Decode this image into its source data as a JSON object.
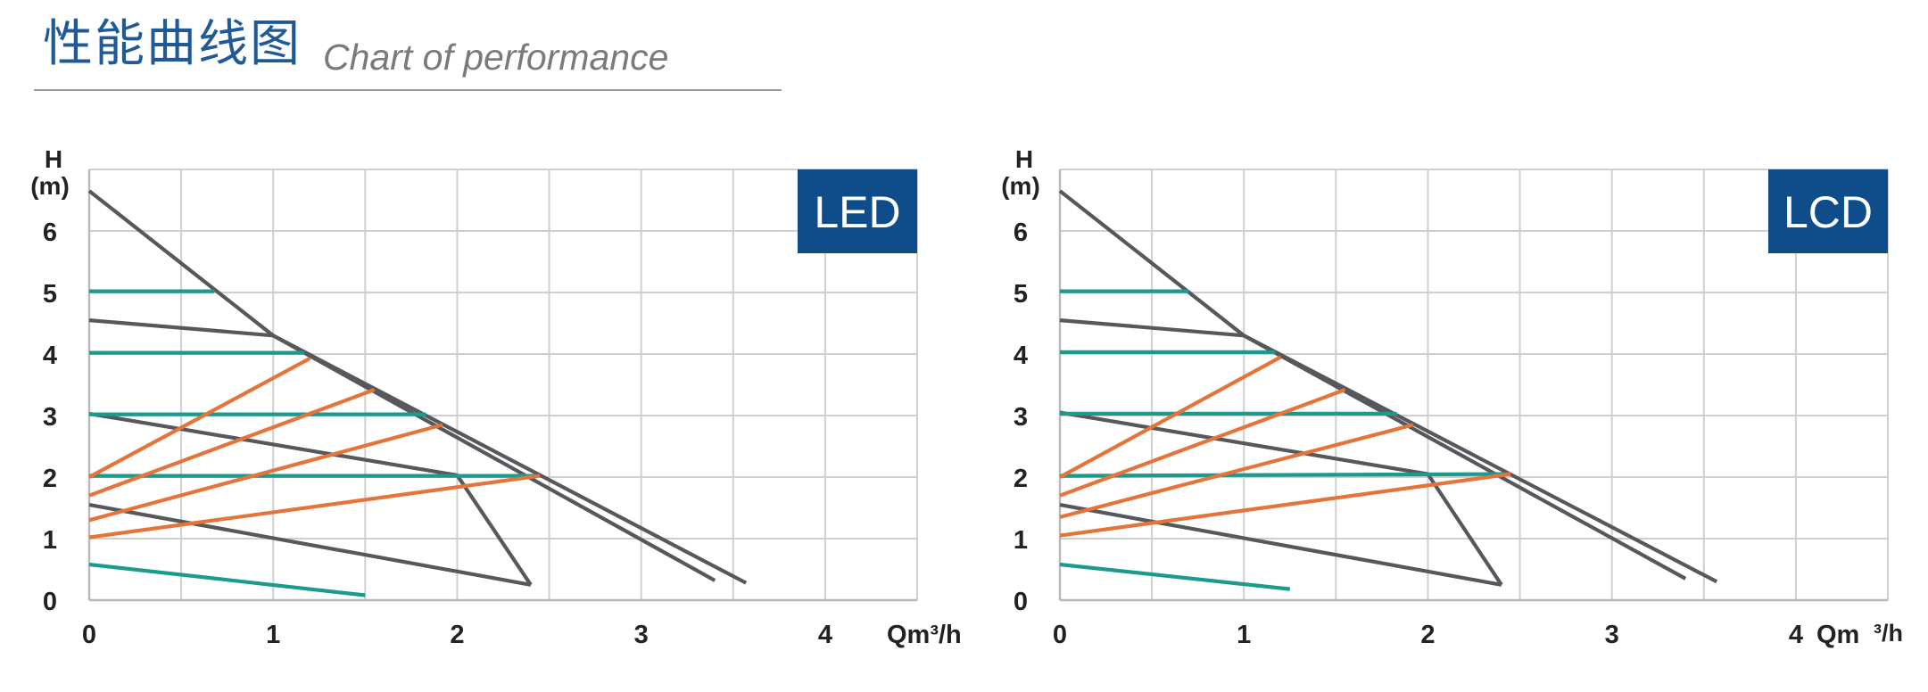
{
  "header": {
    "title_cn": "性能曲线图",
    "title_en": "Chart of performance"
  },
  "colors": {
    "title": "#1f5a96",
    "badge": "#0f4d8a",
    "grid": "#cfcfcf",
    "gray_curve": "#56585c",
    "teal": "#1b9b8e",
    "orange": "#e4743a"
  },
  "chart_data": [
    {
      "type": "line",
      "badge": "LED",
      "xlabel": "Qm³/h",
      "ylabel_top": "H",
      "ylabel_bottom": "(m)",
      "x_ticks": [
        "0",
        "1",
        "2",
        "3",
        "4"
      ],
      "y_ticks": [
        "0",
        "1",
        "2",
        "3",
        "4",
        "5",
        "6"
      ],
      "xlim": [
        0,
        4.5
      ],
      "ylim": [
        0,
        7
      ],
      "grid": true,
      "series": [
        {
          "color": "gray",
          "points": [
            [
              0,
              6.65
            ],
            [
              1.0,
              4.3
            ],
            [
              3.57,
              0.28
            ]
          ]
        },
        {
          "color": "gray",
          "points": [
            [
              0,
              4.55
            ],
            [
              1.0,
              4.3
            ],
            [
              3.4,
              0.32
            ]
          ]
        },
        {
          "color": "gray",
          "points": [
            [
              0,
              3.03
            ],
            [
              2.0,
              2.03
            ],
            [
              2.4,
              0.25
            ]
          ]
        },
        {
          "color": "gray",
          "points": [
            [
              0,
              1.55
            ],
            [
              2.4,
              0.25
            ]
          ]
        },
        {
          "color": "teal",
          "points": [
            [
              0,
              5.02
            ],
            [
              0.68,
              5.02
            ]
          ]
        },
        {
          "color": "teal",
          "points": [
            [
              0,
              4.02
            ],
            [
              1.17,
              4.02
            ]
          ]
        },
        {
          "color": "teal",
          "points": [
            [
              0,
              3.02
            ],
            [
              1.83,
              3.02
            ]
          ]
        },
        {
          "color": "teal",
          "points": [
            [
              0,
              2.02
            ],
            [
              2.43,
              2.02
            ]
          ]
        },
        {
          "color": "teal",
          "points": [
            [
              0,
              0.58
            ],
            [
              1.5,
              0.08
            ]
          ]
        },
        {
          "color": "orange",
          "points": [
            [
              0,
              2.0
            ],
            [
              1.2,
              3.93
            ]
          ]
        },
        {
          "color": "orange",
          "points": [
            [
              0,
              1.7
            ],
            [
              1.55,
              3.42
            ]
          ]
        },
        {
          "color": "orange",
          "points": [
            [
              0,
              1.3
            ],
            [
              1.92,
              2.85
            ]
          ]
        },
        {
          "color": "orange",
          "points": [
            [
              0,
              1.02
            ],
            [
              2.45,
              2.02
            ]
          ]
        }
      ]
    },
    {
      "type": "line",
      "badge": "LCD",
      "xlabel_q": "Qm",
      "xlabel_unit": "³/h",
      "ylabel_top": "H",
      "ylabel_bottom": "(m)",
      "x_ticks": [
        "0",
        "1",
        "2",
        "3",
        "4"
      ],
      "y_ticks": [
        "0",
        "1",
        "2",
        "3",
        "4",
        "5",
        "6"
      ],
      "xlim": [
        0,
        4.5
      ],
      "ylim": [
        0,
        7
      ],
      "grid": true,
      "series": [
        {
          "color": "gray",
          "points": [
            [
              0,
              6.65
            ],
            [
              1.0,
              4.3
            ],
            [
              3.57,
              0.3
            ]
          ]
        },
        {
          "color": "gray",
          "points": [
            [
              0,
              4.55
            ],
            [
              1.0,
              4.3
            ],
            [
              3.4,
              0.35
            ]
          ]
        },
        {
          "color": "gray",
          "points": [
            [
              0,
              3.05
            ],
            [
              2.0,
              2.05
            ],
            [
              2.4,
              0.25
            ]
          ]
        },
        {
          "color": "gray",
          "points": [
            [
              0,
              1.55
            ],
            [
              2.4,
              0.25
            ]
          ]
        },
        {
          "color": "teal",
          "points": [
            [
              0,
              5.02
            ],
            [
              0.7,
              5.02
            ]
          ]
        },
        {
          "color": "teal",
          "points": [
            [
              0,
              4.03
            ],
            [
              1.17,
              4.03
            ]
          ]
        },
        {
          "color": "teal",
          "points": [
            [
              0,
              3.03
            ],
            [
              1.83,
              3.03
            ]
          ]
        },
        {
          "color": "teal",
          "points": [
            [
              0,
              2.02
            ],
            [
              2.45,
              2.05
            ]
          ]
        },
        {
          "color": "teal",
          "points": [
            [
              0,
              0.58
            ],
            [
              1.25,
              0.18
            ]
          ]
        },
        {
          "color": "orange",
          "points": [
            [
              0,
              2.0
            ],
            [
              1.2,
              3.95
            ]
          ]
        },
        {
          "color": "orange",
          "points": [
            [
              0,
              1.7
            ],
            [
              1.55,
              3.42
            ]
          ]
        },
        {
          "color": "orange",
          "points": [
            [
              0,
              1.35
            ],
            [
              1.92,
              2.85
            ]
          ]
        },
        {
          "color": "orange",
          "points": [
            [
              0,
              1.05
            ],
            [
              2.45,
              2.05
            ]
          ]
        }
      ]
    }
  ]
}
